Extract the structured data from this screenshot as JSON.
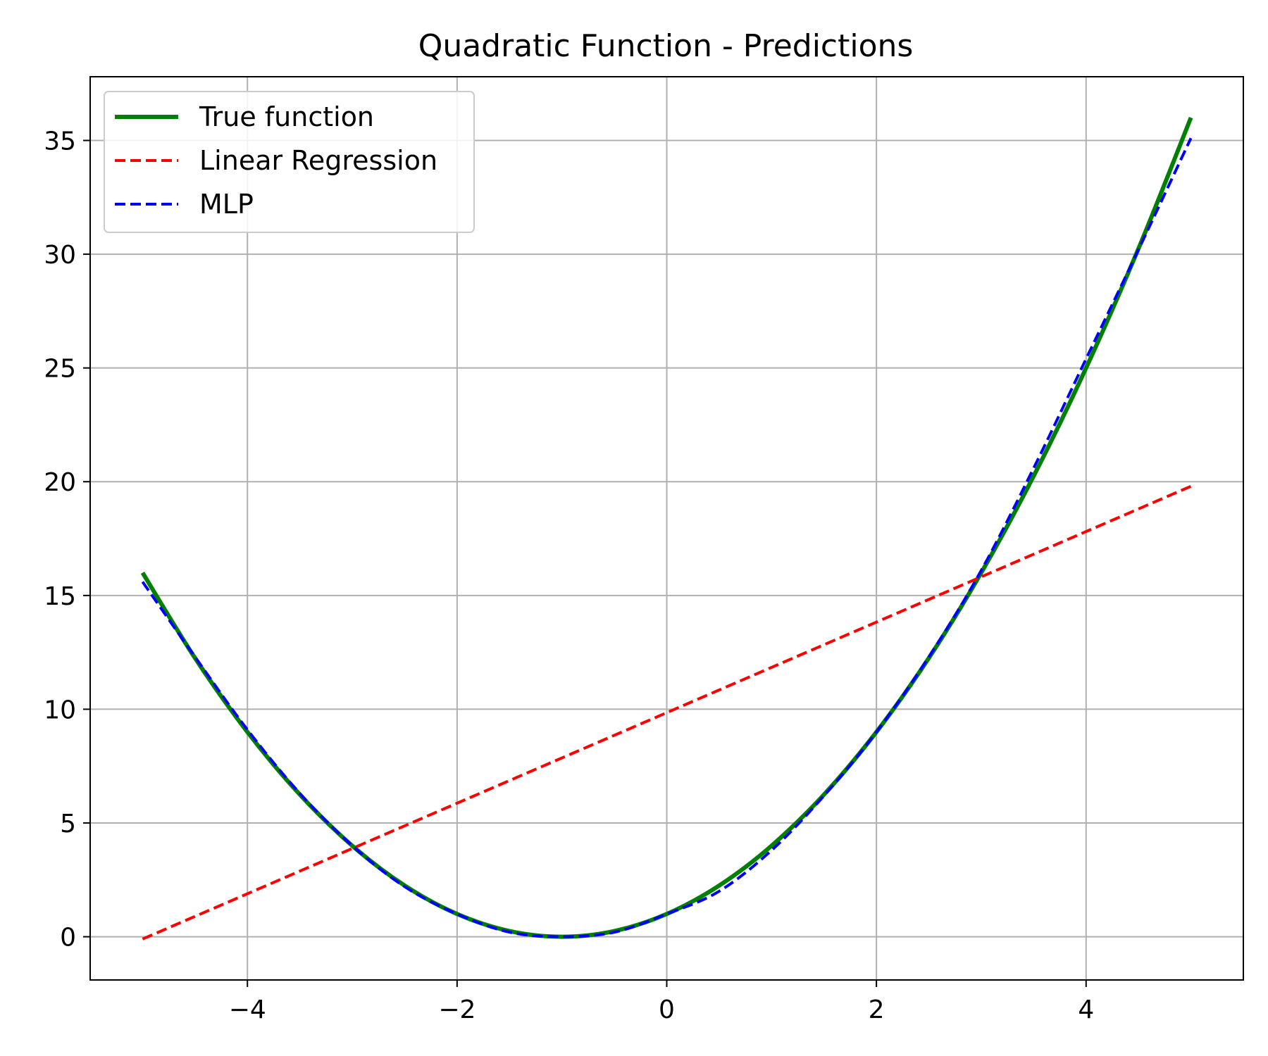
{
  "chart_data": {
    "type": "line",
    "title": "Quadratic Function - Predictions",
    "xlabel": "",
    "ylabel": "",
    "xlim": [
      -5.5,
      5.5
    ],
    "ylim": [
      -1.9,
      37.8
    ],
    "xticks": [
      -4,
      -2,
      0,
      2,
      4
    ],
    "xtick_labels": [
      "−4",
      "−2",
      "0",
      "2",
      "4"
    ],
    "yticks": [
      0,
      5,
      10,
      15,
      20,
      25,
      30,
      35
    ],
    "ytick_labels": [
      "0",
      "5",
      "10",
      "15",
      "20",
      "25",
      "30",
      "35"
    ],
    "grid": true,
    "legend_position": "top-left",
    "series": [
      {
        "name": "True function",
        "color": "#008000",
        "style": "solid",
        "x": [
          -5,
          -4.5,
          -4,
          -3.5,
          -3,
          -2.5,
          -2,
          -1.5,
          -1,
          -0.5,
          0,
          0.5,
          1,
          1.5,
          2,
          2.5,
          3,
          3.5,
          4,
          4.5,
          5
        ],
        "y": [
          16,
          12.25,
          9,
          6.25,
          4,
          2.25,
          1,
          0.25,
          0,
          0.25,
          1,
          2.25,
          4,
          6.25,
          9,
          12.25,
          16,
          20.25,
          25,
          30.25,
          36
        ]
      },
      {
        "name": "Linear Regression",
        "color": "#ff0000",
        "style": "dashed",
        "x": [
          -5,
          5
        ],
        "y": [
          -0.1,
          19.8
        ]
      },
      {
        "name": "MLP",
        "color": "#0000ff",
        "style": "dashed",
        "x": [
          -5,
          -4.5,
          -4,
          -3.5,
          -3,
          -2.5,
          -2,
          -1.5,
          -1,
          -0.5,
          0,
          0.5,
          1,
          1.5,
          2,
          2.5,
          3,
          3.5,
          4,
          4.5,
          5
        ],
        "y": [
          15.6,
          12.3,
          9.1,
          6.3,
          4.0,
          2.2,
          1.0,
          0.2,
          0.0,
          0.2,
          1.0,
          2.0,
          3.8,
          6.2,
          9.0,
          12.3,
          16.1,
          20.6,
          25.4,
          30.2,
          35.1
        ]
      }
    ]
  }
}
